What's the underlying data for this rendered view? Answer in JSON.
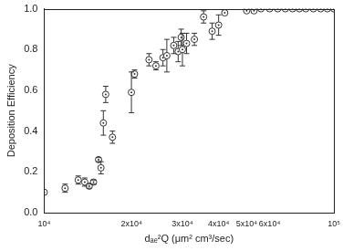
{
  "chart_data": {
    "type": "scatter",
    "x_label": "dₐₑ²Q (μm² cm³/sec)",
    "y_label": "Deposition Efficiency",
    "log": "x",
    "grid": false,
    "xlim": [
      10000,
      100000
    ],
    "xticks": [
      {
        "value": 10000,
        "label": "10⁴"
      },
      {
        "value": 20000,
        "label": "2x10⁴"
      },
      {
        "value": 30000,
        "label": "3x10⁴"
      },
      {
        "value": 40000,
        "label": "4x10⁴"
      },
      {
        "value": 50000,
        "label": "5x10⁴"
      },
      {
        "value": 60000,
        "label": "6x10⁴"
      },
      {
        "value": 100000,
        "label": "10⁵"
      }
    ],
    "ylim": [
      0,
      1
    ],
    "yticks": [
      {
        "value": 0,
        "label": "0.0"
      },
      0.2,
      0.4,
      0.6,
      0.8,
      {
        "value": 1,
        "label": "1.0"
      }
    ],
    "series": [
      {
        "name": "Deposition Efficiency",
        "color": "#333333",
        "marker": "circle",
        "x": [
          10000,
          11800,
          13100,
          13800,
          14300,
          14800,
          15400,
          15700,
          16000,
          16300,
          17200,
          20000,
          20500,
          23000,
          24300,
          25700,
          26500,
          28000,
          29000,
          29700,
          30000,
          31000,
          33000,
          35500,
          38000,
          40000,
          42000,
          50000,
          53000,
          56000,
          60000,
          64000,
          68000,
          72000,
          76000,
          80000,
          85000,
          90000,
          95000,
          100000
        ],
        "values": [
          0.1,
          0.12,
          0.16,
          0.15,
          0.13,
          0.15,
          0.26,
          0.22,
          0.44,
          0.58,
          0.37,
          0.59,
          0.68,
          0.75,
          0.72,
          0.76,
          0.77,
          0.82,
          0.79,
          0.86,
          0.8,
          0.83,
          0.85,
          0.96,
          0.89,
          0.92,
          0.98,
          0.99,
          0.99,
          1.0,
          1.0,
          1.0,
          1.0,
          1.0,
          1.0,
          1.0,
          1.0,
          1.0,
          1.0,
          1.0
        ],
        "errors": [
          0.0,
          0.02,
          0.02,
          0.02,
          0.01,
          0.01,
          0.01,
          0.03,
          0.06,
          0.04,
          0.03,
          0.1,
          0.02,
          0.03,
          0.02,
          0.04,
          0.08,
          0.04,
          0.05,
          0.04,
          0.08,
          0.05,
          0.03,
          0.03,
          0.04,
          0.05,
          0.0,
          0.0,
          0.0,
          0.0,
          0.0,
          0.0,
          0.0,
          0.0,
          0.0,
          0.0,
          0.0,
          0.0,
          0.0,
          0.0
        ]
      }
    ]
  }
}
